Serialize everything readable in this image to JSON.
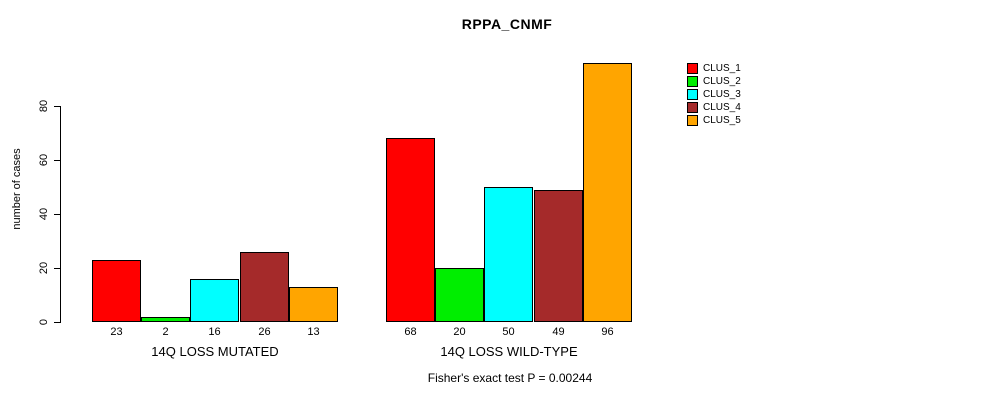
{
  "title": "RPPA_CNMF",
  "ylabel": "number of cases",
  "footer": "Fisher's exact test P = 0.00244",
  "chart_data": {
    "type": "bar",
    "title": "RPPA_CNMF",
    "xlabel": "",
    "ylabel": "number of cases",
    "ylim": [
      0,
      96
    ],
    "yticks": [
      0,
      20,
      40,
      60,
      80
    ],
    "grid": false,
    "legend_position": "right-outside",
    "categories": [
      "14Q LOSS MUTATED",
      "14Q LOSS WILD-TYPE"
    ],
    "series": [
      {
        "name": "CLUS_1",
        "color": "#FF0000",
        "values": [
          23,
          68
        ]
      },
      {
        "name": "CLUS_2",
        "color": "#00EE00",
        "values": [
          2,
          20
        ]
      },
      {
        "name": "CLUS_3",
        "color": "#00FFFF",
        "values": [
          16,
          50
        ]
      },
      {
        "name": "CLUS_4",
        "color": "#A52A2A",
        "values": [
          26,
          49
        ]
      },
      {
        "name": "CLUS_5",
        "color": "#FFA500",
        "values": [
          13,
          96
        ]
      }
    ],
    "bar_value_labels": [
      [
        "23",
        "2",
        "16",
        "26",
        "13"
      ],
      [
        "68",
        "20",
        "50",
        "49",
        "96"
      ]
    ],
    "annotation": "Fisher's exact test P = 0.00244"
  }
}
